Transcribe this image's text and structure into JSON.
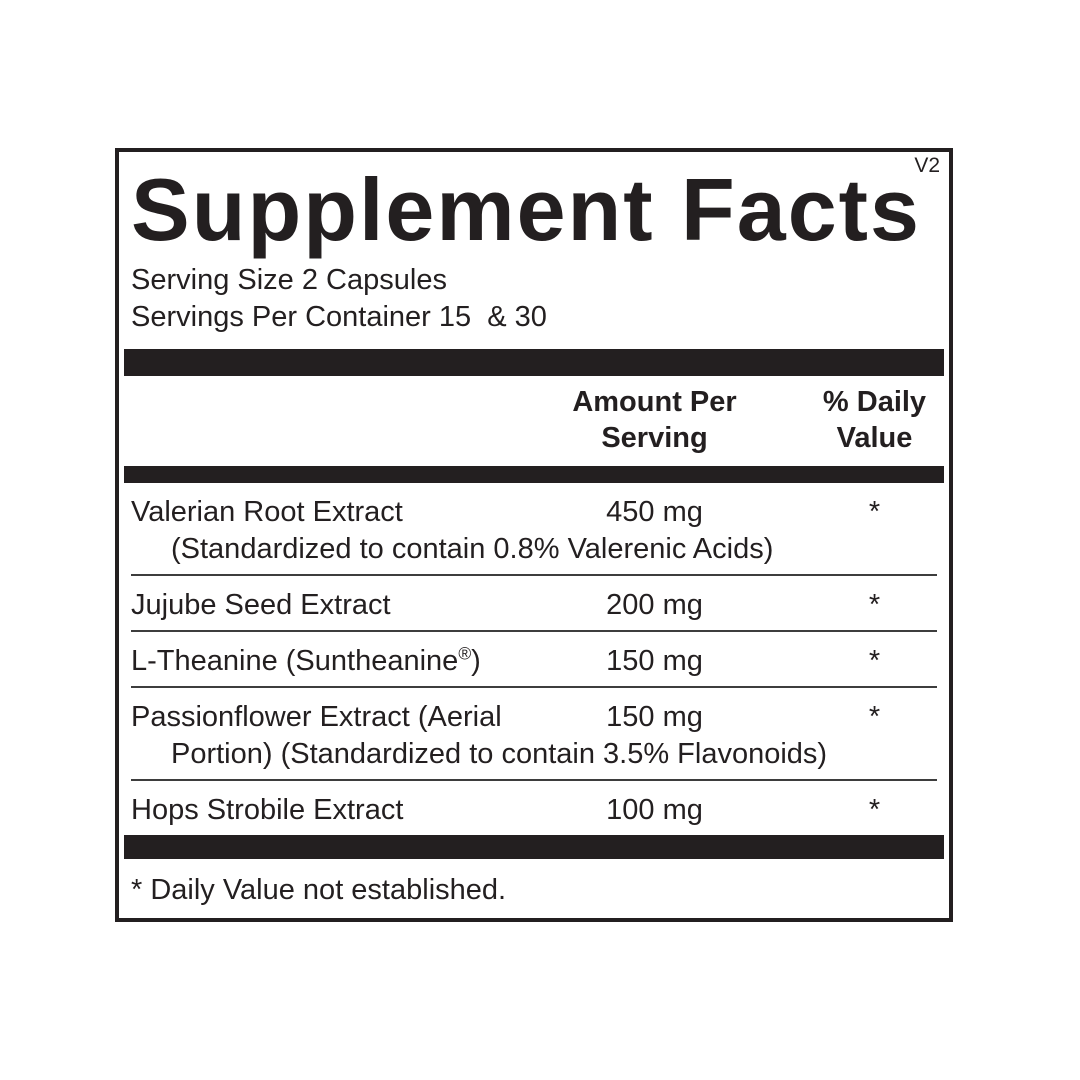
{
  "colors": {
    "ink": "#231f20",
    "background": "#ffffff",
    "separator": "#3d3d3d"
  },
  "version_tag": "V2",
  "title": "Supplement Facts",
  "serving": {
    "size_line": "Serving Size 2 Capsules",
    "per_container_line": "Servings Per Container 15  & 30"
  },
  "columns": {
    "amount_lines": [
      "Amount Per",
      "Serving"
    ],
    "daily_value_lines": [
      "% Daily",
      "Value"
    ]
  },
  "table": {
    "rows": [
      {
        "name": "Valerian Root Extract",
        "detail": "(Standardized to contain 0.8% Valerenic Acids)",
        "amount": "450 mg",
        "daily_value": "*"
      },
      {
        "name": "Jujube Seed Extract",
        "detail": "",
        "amount": "200 mg",
        "daily_value": "*"
      },
      {
        "name": "L-Theanine (Suntheanine®)",
        "detail": "",
        "amount": "150 mg",
        "daily_value": "*"
      },
      {
        "name": "Passionflower Extract (Aerial",
        "detail": "Portion) (Standardized to contain 3.5% Flavonoids)",
        "amount": "150 mg",
        "daily_value": "*"
      },
      {
        "name": "Hops Strobile Extract",
        "detail": "",
        "amount": "100 mg",
        "daily_value": "*"
      }
    ]
  },
  "footnote": "* Daily Value not established."
}
